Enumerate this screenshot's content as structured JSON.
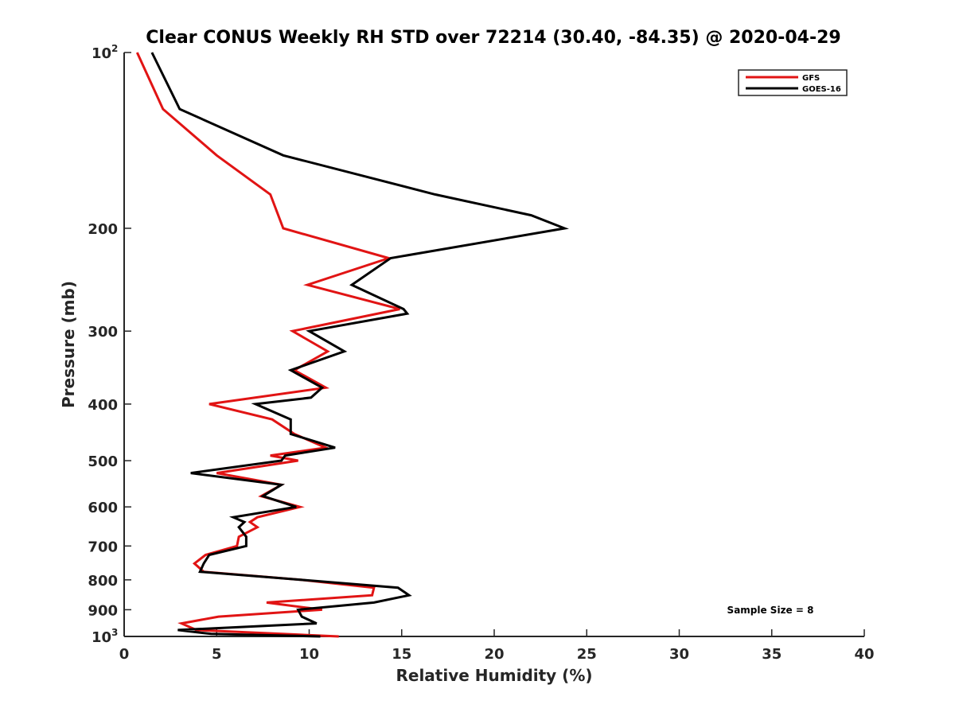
{
  "chart_data": {
    "type": "line",
    "title": "Clear CONUS Weekly RH STD over 72214 (30.40, -84.35) @ 2020-04-29",
    "xlabel": "Relative Humidity (%)",
    "ylabel": "Pressure (mb)",
    "xlim": [
      0,
      40
    ],
    "ylim": [
      100,
      1000
    ],
    "yscale": "log",
    "yreverse": true,
    "grid": false,
    "legend_position": "top-right",
    "x_ticks": [
      {
        "value": 0,
        "label": "0"
      },
      {
        "value": 5,
        "label": "5"
      },
      {
        "value": 10,
        "label": "10"
      },
      {
        "value": 15,
        "label": "15"
      },
      {
        "value": 20,
        "label": "20"
      },
      {
        "value": 25,
        "label": "25"
      },
      {
        "value": 30,
        "label": "30"
      },
      {
        "value": 35,
        "label": "35"
      },
      {
        "value": 40,
        "label": "40"
      }
    ],
    "y_ticks": [
      {
        "value": 100,
        "label": "10",
        "exp": "2"
      },
      {
        "value": 200,
        "label": "200"
      },
      {
        "value": 300,
        "label": "300"
      },
      {
        "value": 400,
        "label": "400"
      },
      {
        "value": 500,
        "label": "500"
      },
      {
        "value": 600,
        "label": "600"
      },
      {
        "value": 700,
        "label": "700"
      },
      {
        "value": 800,
        "label": "800"
      },
      {
        "value": 900,
        "label": "900"
      },
      {
        "value": 1000,
        "label": "10",
        "exp": "3"
      }
    ],
    "annotation": "Sample Size = 8",
    "series": [
      {
        "name": "GFS",
        "color": "#e11414",
        "points": [
          [
            0.7,
            100
          ],
          [
            2.1,
            125
          ],
          [
            5.0,
            150
          ],
          [
            7.9,
            175
          ],
          [
            8.6,
            200
          ],
          [
            14.3,
            225
          ],
          [
            9.9,
            250
          ],
          [
            14.9,
            275
          ],
          [
            9.1,
            300
          ],
          [
            11.0,
            325
          ],
          [
            9.2,
            350
          ],
          [
            10.9,
            375
          ],
          [
            4.6,
            400
          ],
          [
            8.0,
            425
          ],
          [
            9.2,
            450
          ],
          [
            10.9,
            475
          ],
          [
            7.9,
            490
          ],
          [
            9.4,
            500
          ],
          [
            5.0,
            525
          ],
          [
            8.5,
            550
          ],
          [
            7.4,
            575
          ],
          [
            9.5,
            600
          ],
          [
            7.2,
            625
          ],
          [
            6.8,
            637
          ],
          [
            7.2,
            650
          ],
          [
            6.2,
            675
          ],
          [
            6.1,
            700
          ],
          [
            4.4,
            725
          ],
          [
            3.8,
            750
          ],
          [
            4.3,
            775
          ],
          [
            9.6,
            800
          ],
          [
            13.5,
            825
          ],
          [
            13.4,
            850
          ],
          [
            7.7,
            875
          ],
          [
            10.7,
            900
          ],
          [
            5.1,
            925
          ],
          [
            3.1,
            950
          ],
          [
            3.9,
            975
          ],
          [
            11.6,
            1000
          ]
        ]
      },
      {
        "name": "GOES-16",
        "color": "#000000",
        "points": [
          [
            1.5,
            100
          ],
          [
            3.0,
            125
          ],
          [
            8.6,
            150
          ],
          [
            16.8,
            175
          ],
          [
            22.0,
            190
          ],
          [
            23.8,
            200
          ],
          [
            14.4,
            225
          ],
          [
            12.3,
            250
          ],
          [
            15.1,
            275
          ],
          [
            15.3,
            280
          ],
          [
            10.0,
            300
          ],
          [
            11.9,
            325
          ],
          [
            9.0,
            350
          ],
          [
            10.7,
            375
          ],
          [
            10.1,
            390
          ],
          [
            7.1,
            400
          ],
          [
            9.0,
            425
          ],
          [
            9.0,
            450
          ],
          [
            11.4,
            475
          ],
          [
            8.7,
            490
          ],
          [
            8.5,
            500
          ],
          [
            3.6,
            525
          ],
          [
            8.5,
            550
          ],
          [
            7.5,
            575
          ],
          [
            9.3,
            600
          ],
          [
            5.9,
            625
          ],
          [
            6.5,
            637
          ],
          [
            6.2,
            650
          ],
          [
            6.6,
            675
          ],
          [
            6.6,
            700
          ],
          [
            4.6,
            725
          ],
          [
            4.3,
            750
          ],
          [
            4.1,
            775
          ],
          [
            9.6,
            800
          ],
          [
            14.8,
            825
          ],
          [
            15.4,
            850
          ],
          [
            13.5,
            875
          ],
          [
            9.4,
            900
          ],
          [
            9.6,
            925
          ],
          [
            10.4,
            950
          ],
          [
            2.9,
            975
          ],
          [
            4.7,
            990
          ],
          [
            10.6,
            1000
          ]
        ]
      }
    ]
  }
}
